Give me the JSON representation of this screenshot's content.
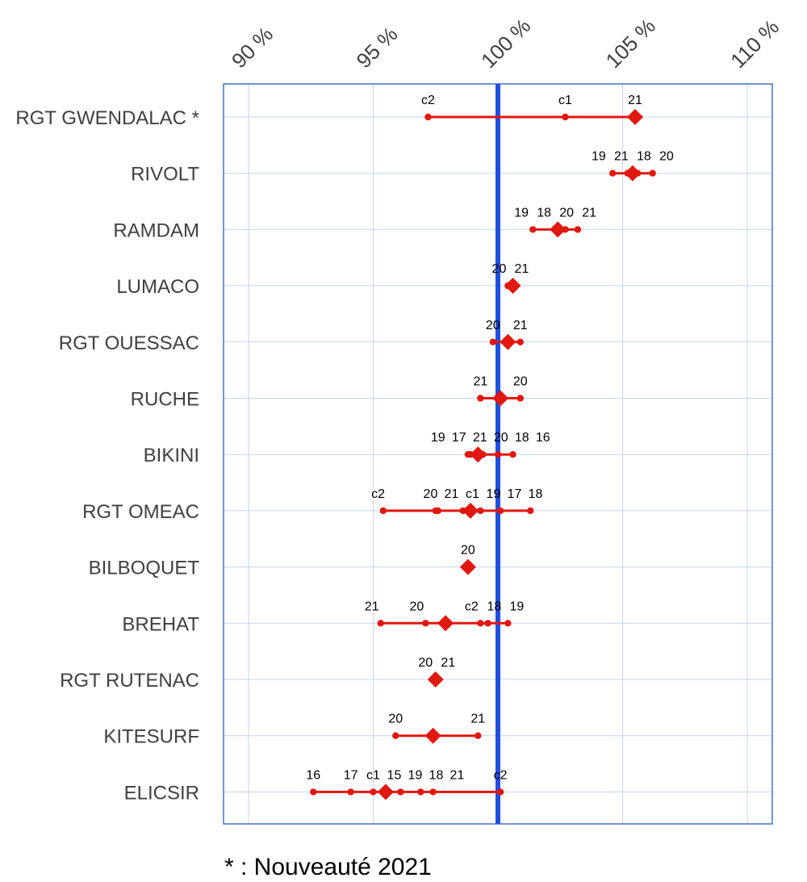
{
  "chart_data": {
    "type": "dot-range",
    "xlim": [
      89,
      111
    ],
    "x_ticks": [
      90,
      95,
      100,
      105,
      110
    ],
    "x_tick_labels": [
      "90 %",
      "95 %",
      "100 %",
      "105 %",
      "110 %"
    ],
    "reference_line": 100,
    "grid": true,
    "categories": [
      {
        "name": "RGT GWENDALAC  *",
        "main": 105.5,
        "points": [
          {
            "label": "c2",
            "value": 97.2
          },
          {
            "label": "c1",
            "value": 102.7
          },
          {
            "label": "21",
            "value": 105.5
          }
        ]
      },
      {
        "name": "RIVOLT",
        "main": 105.4,
        "points": [
          {
            "label": "19",
            "value": 104.6
          },
          {
            "label": "21",
            "value": 105.2
          },
          {
            "label": "18",
            "value": 105.6
          },
          {
            "label": "20",
            "value": 106.2
          }
        ]
      },
      {
        "name": "RAMDAM",
        "main": 102.4,
        "points": [
          {
            "label": "19",
            "value": 101.4
          },
          {
            "label": "18",
            "value": 102.3
          },
          {
            "label": "20",
            "value": 102.7
          },
          {
            "label": "21",
            "value": 103.2
          }
        ]
      },
      {
        "name": "LUMACO",
        "main": 100.6,
        "points": [
          {
            "label": "20",
            "value": 100.4
          },
          {
            "label": "21",
            "value": 100.6
          }
        ]
      },
      {
        "name": "RGT OUESSAC",
        "main": 100.4,
        "points": [
          {
            "label": "20",
            "value": 99.8
          },
          {
            "label": "21",
            "value": 100.9
          }
        ]
      },
      {
        "name": "RUCHE",
        "main": 100.1,
        "points": [
          {
            "label": "21",
            "value": 99.3
          },
          {
            "label": "20",
            "value": 100.9
          }
        ]
      },
      {
        "name": "BIKINI",
        "main": 99.2,
        "points": [
          {
            "label": "19",
            "value": 98.8
          },
          {
            "label": "17",
            "value": 98.9
          },
          {
            "label": "21",
            "value": 99.1
          },
          {
            "label": "20",
            "value": 99.4
          },
          {
            "label": "18",
            "value": 100.0
          },
          {
            "label": "16",
            "value": 100.6
          }
        ]
      },
      {
        "name": "RGT OMEAC",
        "main": 98.9,
        "points": [
          {
            "label": "c2",
            "value": 95.4
          },
          {
            "label": "20",
            "value": 97.5
          },
          {
            "label": "21",
            "value": 97.6
          },
          {
            "label": "c1",
            "value": 98.6
          },
          {
            "label": "19",
            "value": 99.3
          },
          {
            "label": "17",
            "value": 100.1
          },
          {
            "label": "18",
            "value": 101.3
          }
        ]
      },
      {
        "name": "BILBOQUET",
        "main": 98.8,
        "points": [
          {
            "label": "20",
            "value": 98.8
          }
        ]
      },
      {
        "name": "BREHAT",
        "main": 97.9,
        "points": [
          {
            "label": "21",
            "value": 95.3
          },
          {
            "label": "20",
            "value": 97.1
          },
          {
            "label": "c2",
            "value": 99.3
          },
          {
            "label": "18",
            "value": 99.6
          },
          {
            "label": "19",
            "value": 100.4
          }
        ]
      },
      {
        "name": "RGT RUTENAC",
        "main": 97.5,
        "points": [
          {
            "label": "20",
            "value": 97.5
          },
          {
            "label": "21",
            "value": 97.6
          }
        ]
      },
      {
        "name": "KITESURF",
        "main": 97.4,
        "points": [
          {
            "label": "20",
            "value": 95.9
          },
          {
            "label": "21",
            "value": 99.2
          }
        ]
      },
      {
        "name": "ELICSIR",
        "main": 95.5,
        "points": [
          {
            "label": "16",
            "value": 92.6
          },
          {
            "label": "17",
            "value": 94.1
          },
          {
            "label": "c1",
            "value": 95.0
          },
          {
            "label": "15",
            "value": 95.6
          },
          {
            "label": "19",
            "value": 96.1
          },
          {
            "label": "18",
            "value": 96.9
          },
          {
            "label": "21",
            "value": 97.4
          },
          {
            "label": "c2",
            "value": 100.1
          }
        ]
      }
    ],
    "colors": {
      "frame": "#4472C4",
      "grid": "#C5D4F0",
      "reference_line": "#1F4FE0",
      "series": "#E01810"
    }
  },
  "footnote": "* : Nouveauté 2021"
}
